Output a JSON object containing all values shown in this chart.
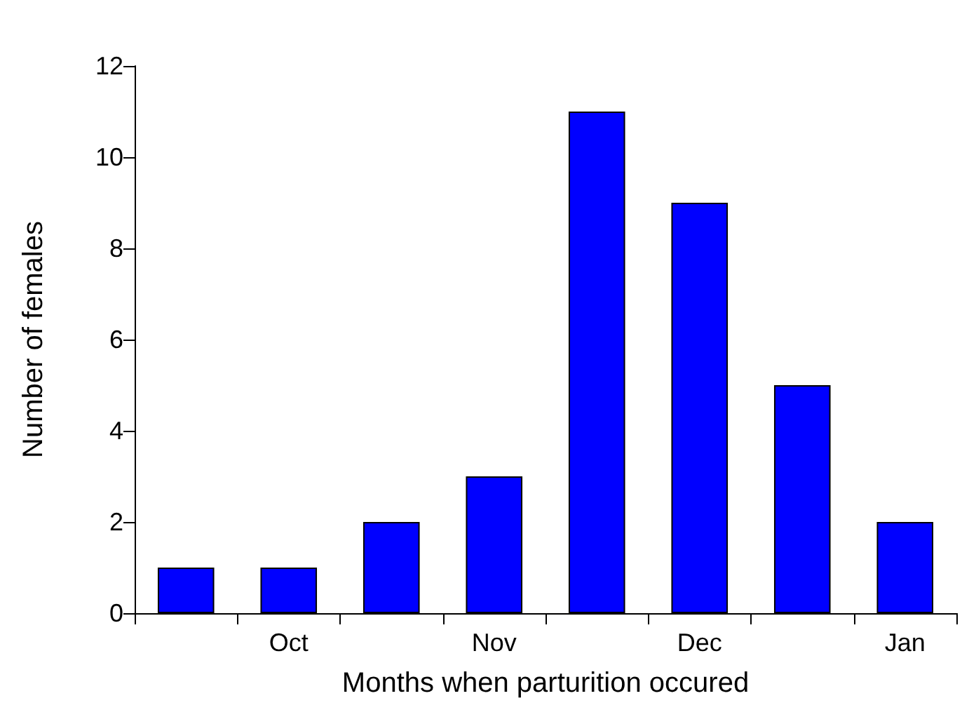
{
  "chart_data": {
    "type": "bar",
    "xlabel": "Months when parturition occured",
    "ylabel": "Number of females",
    "categories": [
      null,
      "Oct",
      null,
      "Nov",
      null,
      "Dec",
      null,
      "Jan"
    ],
    "values": [
      1,
      1,
      2,
      3,
      11,
      9,
      5,
      2
    ],
    "color": "#0000ff",
    "ylim": [
      0,
      12
    ],
    "yticks": [
      0,
      2,
      4,
      6,
      8,
      10,
      12
    ]
  }
}
